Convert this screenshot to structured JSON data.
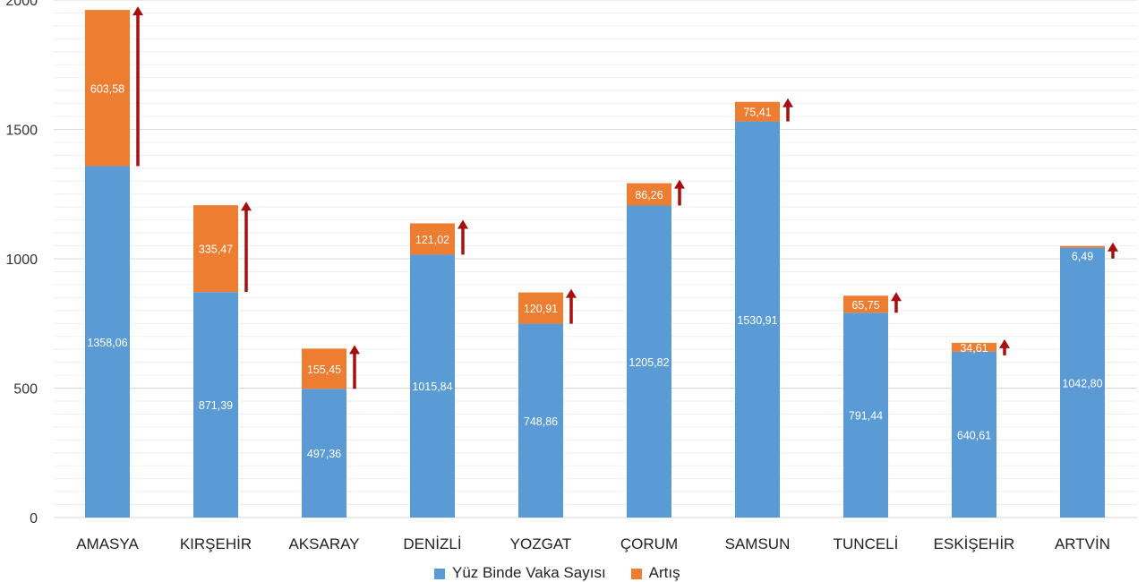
{
  "chart_data": {
    "type": "bar",
    "stacked": true,
    "categories": [
      "AMASYA",
      "KIRŞEHİR",
      "AKSARAY",
      "DENİZLİ",
      "YOZGAT",
      "ÇORUM",
      "SAMSUN",
      "TUNCELİ",
      "ESKİŞEHİR",
      "ARTVİN"
    ],
    "series": [
      {
        "name": "Yüz Binde Vaka Sayısı",
        "color": "#5b9bd5",
        "values": [
          1358.06,
          871.39,
          497.36,
          1015.84,
          748.86,
          1205.82,
          1530.91,
          791.44,
          640.61,
          1042.8
        ],
        "labels": [
          "1358,06",
          "871,39",
          "497,36",
          "1015,84",
          "748,86",
          "1205,82",
          "1530,91",
          "791,44",
          "640,61",
          "1042,80"
        ]
      },
      {
        "name": "Artış",
        "color": "#ed7d31",
        "values": [
          603.58,
          335.47,
          155.45,
          121.02,
          120.91,
          86.26,
          75.41,
          65.75,
          34.61,
          6.49
        ],
        "labels": [
          "603,58",
          "335,47",
          "155,45",
          "121,02",
          "120,91",
          "86,26",
          "75,41",
          "65,75",
          "34,61",
          "6,49"
        ]
      }
    ],
    "ylim": [
      0,
      2000
    ],
    "yticks": [
      "0",
      "500",
      "1000",
      "1500",
      "2000"
    ],
    "grid": true,
    "arrow_color": "#a50f0f",
    "legend_position": "bottom"
  }
}
